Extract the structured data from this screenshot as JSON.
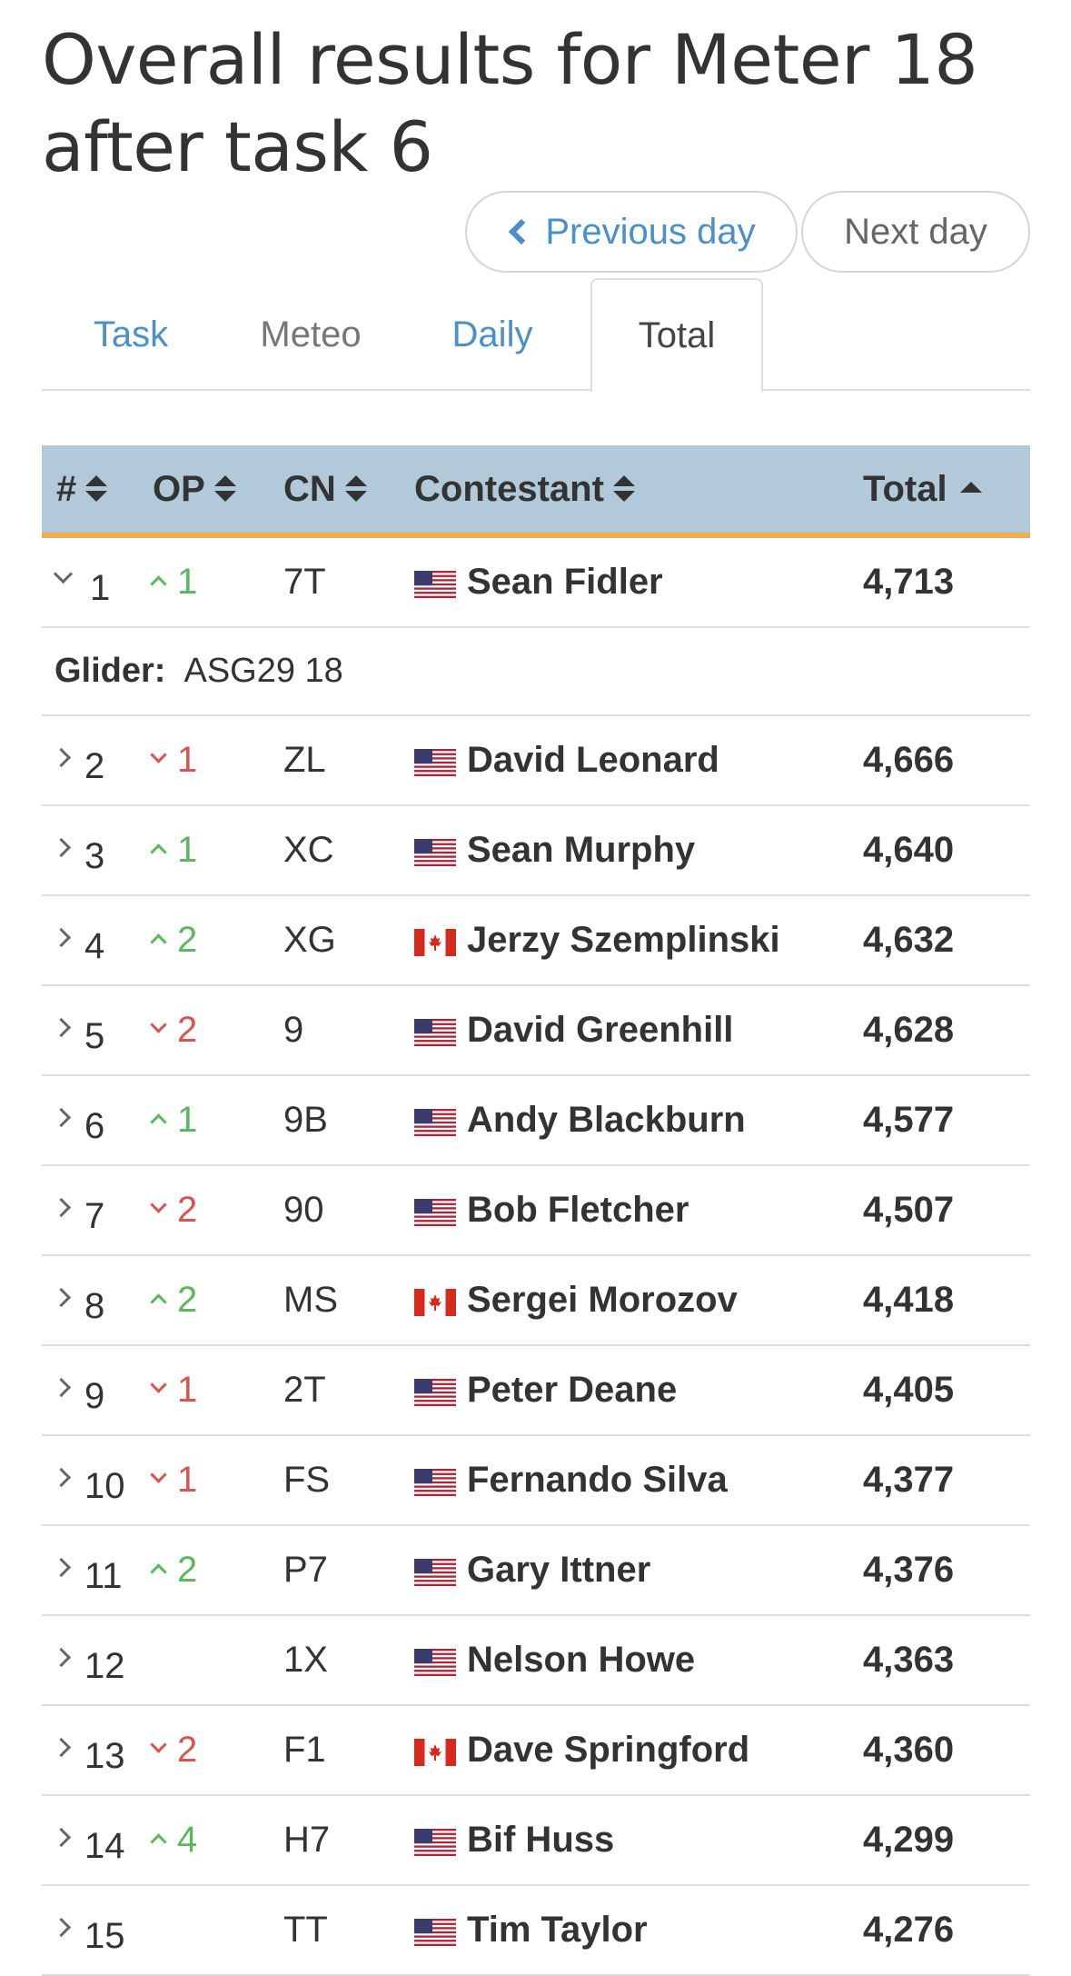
{
  "title": "Overall results for Meter 18 after task 6",
  "nav": {
    "previous_day": "Previous day",
    "next_day": "Next day"
  },
  "tabs": [
    {
      "label": "Task",
      "state": "link"
    },
    {
      "label": "Meteo",
      "state": "muted"
    },
    {
      "label": "Daily",
      "state": "link"
    },
    {
      "label": "Total",
      "state": "active"
    }
  ],
  "table": {
    "headers": {
      "rank": "#",
      "op": "OP",
      "cn": "CN",
      "contestant": "Contestant",
      "total": "Total"
    },
    "detail_label": "Glider:",
    "rows": [
      {
        "rank": "1",
        "op_dir": "up",
        "op": "1",
        "cn": "7T",
        "flag": "us",
        "name": "Sean Fidler",
        "total": "4,713",
        "expanded": true,
        "glider": "ASG29 18"
      },
      {
        "rank": "2",
        "op_dir": "down",
        "op": "1",
        "cn": "ZL",
        "flag": "us",
        "name": "David Leonard",
        "total": "4,666"
      },
      {
        "rank": "3",
        "op_dir": "up",
        "op": "1",
        "cn": "XC",
        "flag": "us",
        "name": "Sean Murphy",
        "total": "4,640"
      },
      {
        "rank": "4",
        "op_dir": "up",
        "op": "2",
        "cn": "XG",
        "flag": "ca",
        "name": "Jerzy Szemplinski",
        "total": "4,632"
      },
      {
        "rank": "5",
        "op_dir": "down",
        "op": "2",
        "cn": "9",
        "flag": "us",
        "name": "David Greenhill",
        "total": "4,628"
      },
      {
        "rank": "6",
        "op_dir": "up",
        "op": "1",
        "cn": "9B",
        "flag": "us",
        "name": "Andy Blackburn",
        "total": "4,577"
      },
      {
        "rank": "7",
        "op_dir": "down",
        "op": "2",
        "cn": "90",
        "flag": "us",
        "name": "Bob Fletcher",
        "total": "4,507"
      },
      {
        "rank": "8",
        "op_dir": "up",
        "op": "2",
        "cn": "MS",
        "flag": "ca",
        "name": "Sergei Morozov",
        "total": "4,418"
      },
      {
        "rank": "9",
        "op_dir": "down",
        "op": "1",
        "cn": "2T",
        "flag": "us",
        "name": "Peter Deane",
        "total": "4,405"
      },
      {
        "rank": "10",
        "op_dir": "down",
        "op": "1",
        "cn": "FS",
        "flag": "us",
        "name": "Fernando Silva",
        "total": "4,377"
      },
      {
        "rank": "11",
        "op_dir": "up",
        "op": "2",
        "cn": "P7",
        "flag": "us",
        "name": "Gary Ittner",
        "total": "4,376"
      },
      {
        "rank": "12",
        "op_dir": "",
        "op": "",
        "cn": "1X",
        "flag": "us",
        "name": "Nelson Howe",
        "total": "4,363"
      },
      {
        "rank": "13",
        "op_dir": "down",
        "op": "2",
        "cn": "F1",
        "flag": "ca",
        "name": "Dave Springford",
        "total": "4,360"
      },
      {
        "rank": "14",
        "op_dir": "up",
        "op": "4",
        "cn": "H7",
        "flag": "us",
        "name": "Bif Huss",
        "total": "4,299"
      },
      {
        "rank": "15",
        "op_dir": "",
        "op": "",
        "cn": "TT",
        "flag": "us",
        "name": "Tim Taylor",
        "total": "4,276"
      }
    ]
  },
  "colors": {
    "link": "#4a90c9",
    "header_bg": "#b2c9d9",
    "header_border": "#f0ad4e",
    "up": "#5cb85c",
    "down": "#d9534f"
  }
}
